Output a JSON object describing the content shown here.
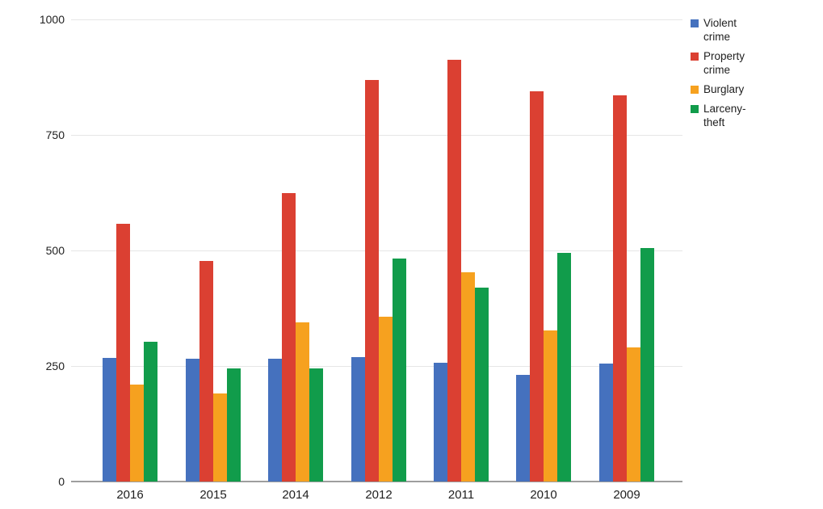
{
  "chart_data": {
    "type": "bar",
    "title": "",
    "xlabel": "",
    "ylabel": "",
    "categories": [
      "2016",
      "2015",
      "2014",
      "2012",
      "2011",
      "2010",
      "2009"
    ],
    "series": [
      {
        "name": "Violent crime",
        "color": "#4571BE",
        "values": [
          268,
          265,
          265,
          270,
          257,
          230,
          256
        ]
      },
      {
        "name": "Property crime",
        "color": "#DB4032",
        "values": [
          557,
          477,
          624,
          869,
          913,
          845,
          836
        ]
      },
      {
        "name": "Burglary",
        "color": "#F6A11F",
        "values": [
          210,
          190,
          345,
          356,
          452,
          327,
          290
        ]
      },
      {
        "name": "Larceny-theft",
        "color": "#119C4B",
        "values": [
          303,
          245,
          244,
          483,
          420,
          495,
          506
        ]
      }
    ],
    "ylim": [
      0,
      1000
    ],
    "y_ticks": [
      0,
      250,
      500,
      750,
      1000
    ],
    "grid": "horizontal",
    "legend_position": "right"
  },
  "colors": {
    "background": "#ffffff",
    "gridline": "#e6e6e6",
    "baseline": "#9e9e9e",
    "text": "#212121"
  }
}
